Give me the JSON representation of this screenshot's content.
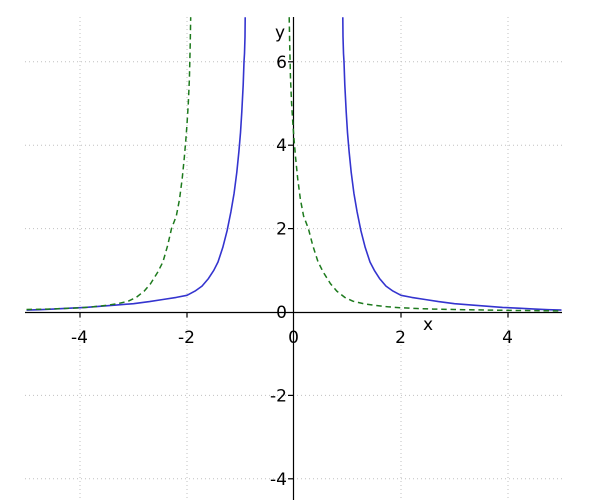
{
  "chart_data": {
    "type": "line",
    "title": "",
    "xlabel": "x",
    "ylabel": "y",
    "x_ticks": [
      -4,
      -2,
      0,
      2,
      4
    ],
    "y_ticks": [
      6,
      4,
      2,
      0,
      -2,
      -4
    ],
    "x_range": [
      -5,
      5
    ],
    "y_range": [
      -4.5,
      7.1
    ],
    "grid": true,
    "legend_position": "none",
    "series": [
      {
        "name": "blue-solid-curve",
        "color": "#3434cf",
        "style": "solid",
        "width": 1.6,
        "segments": [
          [
            [
              -5.0,
              0.045
            ],
            [
              -4.75,
              0.055
            ],
            [
              -4.5,
              0.07
            ],
            [
              -4.2,
              0.09
            ],
            [
              -3.9,
              0.11
            ],
            [
              -3.6,
              0.14
            ],
            [
              -3.3,
              0.17
            ],
            [
              -3.0,
              0.2
            ],
            [
              -2.7,
              0.25
            ],
            [
              -2.45,
              0.3
            ],
            [
              -2.2,
              0.35
            ],
            [
              -2.0,
              0.4
            ],
            [
              -1.85,
              0.5
            ],
            [
              -1.72,
              0.62
            ],
            [
              -1.6,
              0.8
            ],
            [
              -1.5,
              1.0
            ],
            [
              -1.42,
              1.2
            ],
            [
              -1.33,
              1.55
            ],
            [
              -1.25,
              1.95
            ],
            [
              -1.18,
              2.4
            ],
            [
              -1.12,
              2.85
            ],
            [
              -1.07,
              3.35
            ],
            [
              -1.03,
              3.85
            ],
            [
              -1.0,
              4.3
            ],
            [
              -0.975,
              4.8
            ],
            [
              -0.95,
              5.45
            ],
            [
              -0.935,
              6.0
            ],
            [
              -0.925,
              6.2
            ],
            [
              -0.915,
              6.6
            ],
            [
              -0.912,
              7.07
            ]
          ],
          [
            [
              0.912,
              7.07
            ],
            [
              0.915,
              6.6
            ],
            [
              0.925,
              6.2
            ],
            [
              0.935,
              6.0
            ],
            [
              0.95,
              5.45
            ],
            [
              0.975,
              4.8
            ],
            [
              1.0,
              4.3
            ],
            [
              1.03,
              3.85
            ],
            [
              1.07,
              3.35
            ],
            [
              1.12,
              2.85
            ],
            [
              1.18,
              2.4
            ],
            [
              1.25,
              1.95
            ],
            [
              1.33,
              1.55
            ],
            [
              1.42,
              1.2
            ],
            [
              1.5,
              1.0
            ],
            [
              1.6,
              0.8
            ],
            [
              1.72,
              0.62
            ],
            [
              1.85,
              0.5
            ],
            [
              2.0,
              0.4
            ],
            [
              2.2,
              0.35
            ],
            [
              2.45,
              0.3
            ],
            [
              2.7,
              0.25
            ],
            [
              3.0,
              0.2
            ],
            [
              3.3,
              0.17
            ],
            [
              3.6,
              0.14
            ],
            [
              3.9,
              0.11
            ],
            [
              4.2,
              0.09
            ],
            [
              4.5,
              0.07
            ],
            [
              4.75,
              0.055
            ],
            [
              5.0,
              0.045
            ]
          ]
        ]
      },
      {
        "name": "green-dashed-curve",
        "color": "#1d7a1d",
        "style": "dashed",
        "dash": [
          5.5,
          3.8
        ],
        "width": 1.5,
        "segments": [
          [
            [
              -5.0,
              0.06
            ],
            [
              -4.6,
              0.07
            ],
            [
              -4.3,
              0.085
            ],
            [
              -4.0,
              0.1
            ],
            [
              -3.75,
              0.125
            ],
            [
              -3.5,
              0.16
            ],
            [
              -3.3,
              0.2
            ],
            [
              -3.1,
              0.26
            ],
            [
              -2.95,
              0.35
            ],
            [
              -2.8,
              0.5
            ],
            [
              -2.68,
              0.68
            ],
            [
              -2.55,
              0.95
            ],
            [
              -2.45,
              1.2
            ],
            [
              -2.36,
              1.6
            ],
            [
              -2.29,
              2.0
            ],
            [
              -2.2,
              2.3
            ],
            [
              -2.14,
              2.7
            ],
            [
              -2.09,
              3.2
            ],
            [
              -2.05,
              3.7
            ],
            [
              -2.02,
              4.15
            ],
            [
              -2.0,
              4.5
            ],
            [
              -1.975,
              5.0
            ],
            [
              -1.955,
              5.6
            ],
            [
              -1.94,
              6.4
            ],
            [
              -1.93,
              7.07
            ]
          ],
          [
            [
              -0.09,
              7.07
            ],
            [
              -0.08,
              6.4
            ],
            [
              -0.065,
              5.6
            ],
            [
              -0.045,
              5.0
            ],
            [
              -0.02,
              4.5
            ],
            [
              0.0,
              4.15
            ],
            [
              0.03,
              3.7
            ],
            [
              0.07,
              3.2
            ],
            [
              0.12,
              2.7
            ],
            [
              0.18,
              2.3
            ],
            [
              0.27,
              2.0
            ],
            [
              0.35,
              1.6
            ],
            [
              0.45,
              1.2
            ],
            [
              0.55,
              0.95
            ],
            [
              0.68,
              0.68
            ],
            [
              0.8,
              0.5
            ],
            [
              0.95,
              0.35
            ],
            [
              1.1,
              0.26
            ],
            [
              1.3,
              0.2
            ],
            [
              1.5,
              0.16
            ],
            [
              1.75,
              0.125
            ],
            [
              2.0,
              0.1
            ],
            [
              2.3,
              0.085
            ],
            [
              2.6,
              0.07
            ],
            [
              3.0,
              0.06
            ],
            [
              3.4,
              0.05
            ],
            [
              3.8,
              0.042
            ],
            [
              4.2,
              0.036
            ],
            [
              4.6,
              0.03
            ],
            [
              5.0,
              0.027
            ]
          ]
        ]
      }
    ]
  },
  "colors": {
    "background": "#ffffff",
    "axis": "#000000",
    "grid": "#c0c0c0",
    "tick_text": "#000000"
  }
}
